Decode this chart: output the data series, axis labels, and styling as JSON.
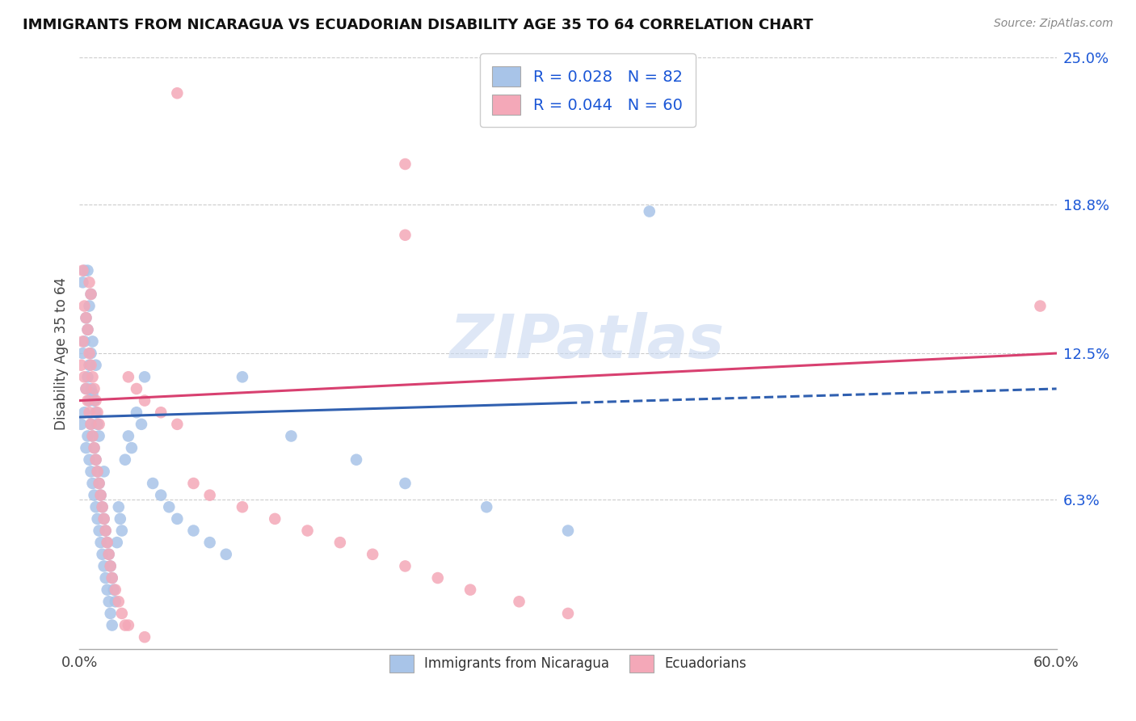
{
  "title": "IMMIGRANTS FROM NICARAGUA VS ECUADORIAN DISABILITY AGE 35 TO 64 CORRELATION CHART",
  "source": "Source: ZipAtlas.com",
  "ylabel": "Disability Age 35 to 64",
  "xlim": [
    0.0,
    0.6
  ],
  "ylim": [
    0.0,
    0.25
  ],
  "yticks": [
    0.063,
    0.125,
    0.188,
    0.25
  ],
  "ytick_labels": [
    "6.3%",
    "12.5%",
    "18.8%",
    "25.0%"
  ],
  "xticks": [
    0.0,
    0.1,
    0.2,
    0.3,
    0.4,
    0.5,
    0.6
  ],
  "xtick_labels": [
    "0.0%",
    "",
    "",
    "",
    "",
    "",
    "60.0%"
  ],
  "blue_r": 0.028,
  "blue_n": 82,
  "pink_r": 0.044,
  "pink_n": 60,
  "blue_color": "#a8c4e8",
  "pink_color": "#f4a8b8",
  "blue_line_color": "#3060b0",
  "pink_line_color": "#d84070",
  "legend_color": "#1a56d6",
  "watermark": "ZIPatlas",
  "blue_line_solid_end": 0.3,
  "blue_line_y_start": 0.098,
  "blue_line_y_end": 0.11,
  "pink_line_y_start": 0.105,
  "pink_line_y_end": 0.125,
  "blue_scatter_x": [
    0.001,
    0.002,
    0.002,
    0.003,
    0.003,
    0.003,
    0.004,
    0.004,
    0.004,
    0.005,
    0.005,
    0.005,
    0.005,
    0.006,
    0.006,
    0.006,
    0.006,
    0.007,
    0.007,
    0.007,
    0.007,
    0.007,
    0.008,
    0.008,
    0.008,
    0.008,
    0.009,
    0.009,
    0.009,
    0.01,
    0.01,
    0.01,
    0.01,
    0.011,
    0.011,
    0.011,
    0.012,
    0.012,
    0.012,
    0.013,
    0.013,
    0.014,
    0.014,
    0.015,
    0.015,
    0.015,
    0.016,
    0.016,
    0.017,
    0.017,
    0.018,
    0.018,
    0.019,
    0.019,
    0.02,
    0.02,
    0.021,
    0.022,
    0.023,
    0.024,
    0.025,
    0.026,
    0.028,
    0.03,
    0.032,
    0.035,
    0.038,
    0.04,
    0.045,
    0.05,
    0.055,
    0.06,
    0.07,
    0.08,
    0.09,
    0.1,
    0.13,
    0.17,
    0.2,
    0.25,
    0.3,
    0.35
  ],
  "blue_scatter_y": [
    0.095,
    0.125,
    0.155,
    0.1,
    0.13,
    0.16,
    0.085,
    0.11,
    0.14,
    0.09,
    0.115,
    0.135,
    0.16,
    0.08,
    0.105,
    0.12,
    0.145,
    0.075,
    0.095,
    0.11,
    0.125,
    0.15,
    0.07,
    0.09,
    0.108,
    0.13,
    0.065,
    0.085,
    0.105,
    0.06,
    0.08,
    0.1,
    0.12,
    0.055,
    0.075,
    0.095,
    0.05,
    0.07,
    0.09,
    0.045,
    0.065,
    0.04,
    0.06,
    0.035,
    0.055,
    0.075,
    0.03,
    0.05,
    0.025,
    0.045,
    0.02,
    0.04,
    0.015,
    0.035,
    0.01,
    0.03,
    0.025,
    0.02,
    0.045,
    0.06,
    0.055,
    0.05,
    0.08,
    0.09,
    0.085,
    0.1,
    0.095,
    0.115,
    0.07,
    0.065,
    0.06,
    0.055,
    0.05,
    0.045,
    0.04,
    0.115,
    0.09,
    0.08,
    0.07,
    0.06,
    0.05,
    0.185
  ],
  "pink_scatter_x": [
    0.001,
    0.002,
    0.002,
    0.003,
    0.003,
    0.004,
    0.004,
    0.005,
    0.005,
    0.006,
    0.006,
    0.006,
    0.007,
    0.007,
    0.007,
    0.008,
    0.008,
    0.009,
    0.009,
    0.01,
    0.01,
    0.011,
    0.011,
    0.012,
    0.012,
    0.013,
    0.014,
    0.015,
    0.016,
    0.017,
    0.018,
    0.019,
    0.02,
    0.022,
    0.024,
    0.026,
    0.028,
    0.03,
    0.035,
    0.04,
    0.05,
    0.06,
    0.07,
    0.08,
    0.1,
    0.12,
    0.14,
    0.16,
    0.18,
    0.2,
    0.22,
    0.24,
    0.27,
    0.3,
    0.06,
    0.2,
    0.2,
    0.59,
    0.03,
    0.04
  ],
  "pink_scatter_y": [
    0.12,
    0.13,
    0.16,
    0.115,
    0.145,
    0.11,
    0.14,
    0.105,
    0.135,
    0.1,
    0.125,
    0.155,
    0.095,
    0.12,
    0.15,
    0.09,
    0.115,
    0.085,
    0.11,
    0.08,
    0.105,
    0.075,
    0.1,
    0.07,
    0.095,
    0.065,
    0.06,
    0.055,
    0.05,
    0.045,
    0.04,
    0.035,
    0.03,
    0.025,
    0.02,
    0.015,
    0.01,
    0.115,
    0.11,
    0.105,
    0.1,
    0.095,
    0.07,
    0.065,
    0.06,
    0.055,
    0.05,
    0.045,
    0.04,
    0.035,
    0.03,
    0.025,
    0.02,
    0.015,
    0.235,
    0.205,
    0.175,
    0.145,
    0.01,
    0.005
  ]
}
